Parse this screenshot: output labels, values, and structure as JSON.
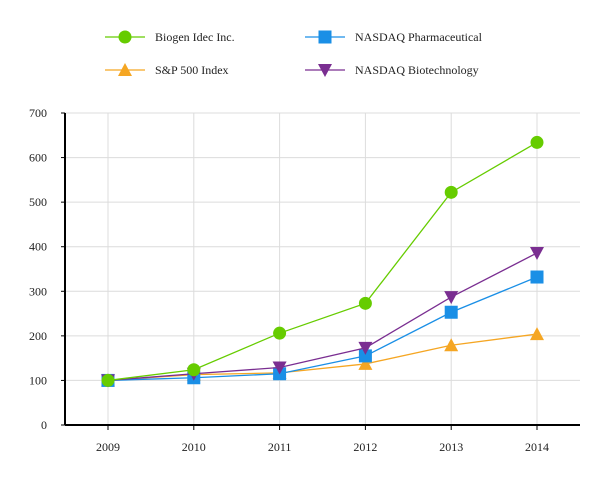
{
  "chart_data": {
    "type": "line",
    "title": "",
    "xlabel": "",
    "ylabel": "",
    "categories": [
      "2009",
      "2010",
      "2011",
      "2012",
      "2013",
      "2014"
    ],
    "ylim": [
      0,
      700
    ],
    "yticks": [
      0,
      100,
      200,
      300,
      400,
      500,
      600,
      700
    ],
    "grid": true,
    "legend_position": "top",
    "series": [
      {
        "name": "Biogen Idec Inc.",
        "color": "#66cc00",
        "marker": "circle",
        "values": [
          100,
          124,
          206,
          273,
          522,
          634
        ]
      },
      {
        "name": "NASDAQ Pharmaceutical",
        "color": "#1a8fe6",
        "marker": "square",
        "values": [
          100,
          106,
          115,
          155,
          253,
          332
        ]
      },
      {
        "name": "S&P 500 Index",
        "color": "#f5a623",
        "marker": "triangle-up",
        "values": [
          100,
          113,
          117,
          137,
          179,
          204
        ]
      },
      {
        "name": "NASDAQ Biotechnology",
        "color": "#7a2e91",
        "marker": "triangle-down",
        "values": [
          100,
          115,
          129,
          173,
          287,
          386
        ]
      }
    ]
  }
}
